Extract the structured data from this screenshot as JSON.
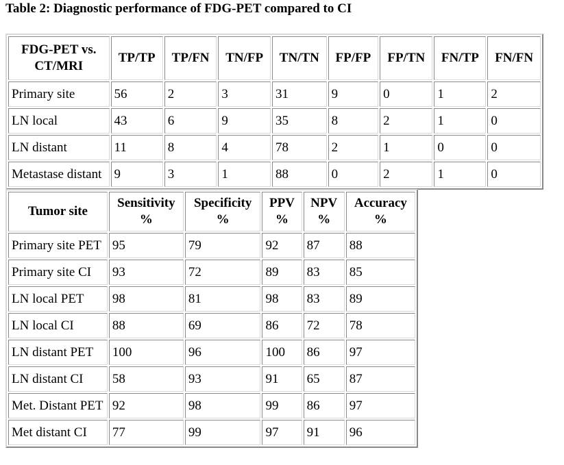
{
  "title": "Table 2: Diagnostic performance of FDG-PET compared to CI",
  "table1": {
    "header": [
      "FDG-PET vs.\nCT/MRI",
      "TP/TP",
      "TP/FN",
      "TN/FP",
      "TN/TN",
      "FP/FP",
      "FP/TN",
      "FN/TP",
      "FN/FN"
    ],
    "rows": [
      [
        "Primary site",
        56,
        2,
        3,
        31,
        9,
        0,
        1,
        2
      ],
      [
        "LN local",
        43,
        6,
        9,
        35,
        8,
        2,
        1,
        0
      ],
      [
        "LN distant",
        11,
        8,
        4,
        78,
        2,
        1,
        0,
        0
      ],
      [
        "Metastase distant",
        9,
        3,
        1,
        88,
        0,
        2,
        1,
        0
      ]
    ]
  },
  "table2": {
    "header": [
      "Tumor site",
      "Sensitivity\n%",
      "Specificity\n%",
      "PPV\n%",
      "NPV\n%",
      "Accuracy\n%"
    ],
    "rows": [
      [
        "Primary site PET",
        95,
        79,
        92,
        87,
        88
      ],
      [
        "Primary site CI",
        93,
        72,
        89,
        83,
        85
      ],
      [
        "LN local PET",
        98,
        81,
        98,
        83,
        89
      ],
      [
        "LN local CI",
        88,
        69,
        86,
        72,
        78
      ],
      [
        "LN distant PET",
        100,
        96,
        100,
        86,
        97
      ],
      [
        "LN distant CI",
        58,
        93,
        91,
        65,
        87
      ],
      [
        "Met. Distant PET",
        92,
        98,
        99,
        86,
        97
      ],
      [
        "Met distant CI",
        77,
        99,
        97,
        91,
        96
      ]
    ]
  }
}
